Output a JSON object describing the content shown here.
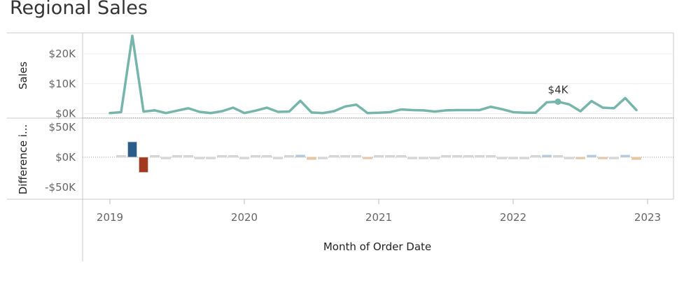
{
  "title": "Regional Sales",
  "chart_data": [
    {
      "type": "line",
      "ylabel": "Sales",
      "ylim": [
        -1500,
        27000
      ],
      "y_ticks": [
        {
          "value": 0,
          "label": "$0K"
        },
        {
          "value": 10000,
          "label": "$10K"
        },
        {
          "value": 20000,
          "label": "$20K"
        }
      ],
      "x_start": "2019-01",
      "series": [
        {
          "values": [
            200,
            500,
            26000,
            700,
            1100,
            200,
            1000,
            1800,
            600,
            200,
            800,
            2000,
            200,
            1000,
            2000,
            600,
            700,
            4300,
            400,
            200,
            800,
            2400,
            3000,
            200,
            300,
            500,
            1400,
            1200,
            1100,
            700,
            1100,
            1200,
            1200,
            1200,
            2300,
            1500,
            500,
            300,
            300,
            3800,
            4000,
            3100,
            800,
            4200,
            2000,
            1800,
            5200,
            1200
          ],
          "color": "#75b5aa"
        }
      ],
      "annotations": [
        {
          "x": "2022-05",
          "y": 4000,
          "label": "$4K"
        }
      ]
    },
    {
      "type": "bar",
      "ylabel": "Difference i...",
      "ylim": [
        -70000,
        65000
      ],
      "y_ticks": [
        {
          "value": -50000,
          "label": "-$50K"
        },
        {
          "value": 0,
          "label": "$0K"
        },
        {
          "value": 50000,
          "label": "$50K"
        }
      ],
      "x_start": "2019-01",
      "values": [
        null,
        300,
        25500,
        -25300,
        400,
        -900,
        800,
        800,
        -1200,
        -400,
        600,
        1200,
        -1800,
        800,
        1000,
        -1400,
        100,
        3600,
        -3900,
        -200,
        600,
        1600,
        600,
        -2800,
        100,
        200,
        900,
        -200,
        -100,
        -400,
        400,
        100,
        0,
        0,
        1100,
        -800,
        -1000,
        -200,
        0,
        3500,
        200,
        -900,
        -2300,
        3400,
        -2200,
        -200,
        3400,
        -4000
      ],
      "colors": {
        "large_positive": "#2b5d8b",
        "large_negative": "#a3391f",
        "small_positive": "#a9cbe2",
        "small_negative": "#f5c48c",
        "neutral": "#d8d8d8"
      }
    }
  ],
  "x_axis": {
    "label": "Month of Order Date",
    "ticks": [
      {
        "date": "2019-01",
        "label": "2019"
      },
      {
        "date": "2020-01",
        "label": "2020"
      },
      {
        "date": "2021-01",
        "label": "2021"
      },
      {
        "date": "2022-01",
        "label": "2022"
      },
      {
        "date": "2023-01",
        "label": "2023"
      }
    ]
  }
}
